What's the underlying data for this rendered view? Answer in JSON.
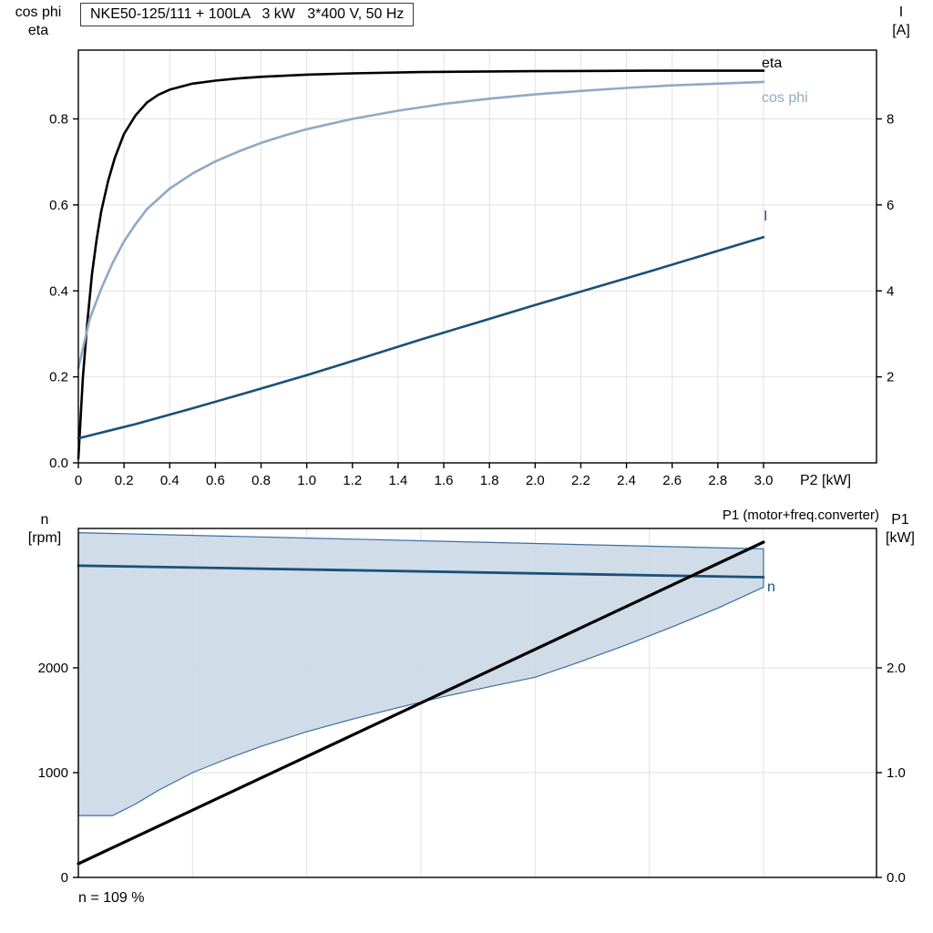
{
  "colors": {
    "eta": "#000000",
    "cos_phi": "#8FA9C7",
    "current": "#1A5078",
    "speed": "#1A5078",
    "p1": "#000000",
    "band_fill": "#CCD9E6",
    "band_stroke": "#3D6E9E",
    "grid": "#E2E2E2",
    "frame": "#000000",
    "text": "#000000"
  },
  "chart_data": [
    {
      "type": "line",
      "title": "NKE50-125/111 + 100LA   3 kW   3*400 V, 50 Hz",
      "x_title": "P2 [kW]",
      "y_left_title": [
        "cos phi",
        "eta"
      ],
      "y_right_title": [
        "I",
        "[A]"
      ],
      "xlim": [
        0,
        3.5
      ],
      "x_ticks": [
        {
          "v": 0,
          "t": "0"
        },
        {
          "v": 0.2,
          "t": "0.2"
        },
        {
          "v": 0.4,
          "t": "0.4"
        },
        {
          "v": 0.6,
          "t": "0.6"
        },
        {
          "v": 0.8,
          "t": "0.8"
        },
        {
          "v": 1.0,
          "t": "1.0"
        },
        {
          "v": 1.2,
          "t": "1.2"
        },
        {
          "v": 1.4,
          "t": "1.4"
        },
        {
          "v": 1.6,
          "t": "1.6"
        },
        {
          "v": 1.8,
          "t": "1.8"
        },
        {
          "v": 2.0,
          "t": "2.0"
        },
        {
          "v": 2.2,
          "t": "2.2"
        },
        {
          "v": 2.4,
          "t": "2.4"
        },
        {
          "v": 2.6,
          "t": "2.6"
        },
        {
          "v": 2.8,
          "t": "2.8"
        },
        {
          "v": 3.0,
          "t": "3.0"
        }
      ],
      "y_left": {
        "label": "cos phi / eta",
        "lim": [
          0,
          0.96
        ],
        "ticks": [
          {
            "v": 0,
            "t": "0.0"
          },
          {
            "v": 0.2,
            "t": "0.2"
          },
          {
            "v": 0.4,
            "t": "0.4"
          },
          {
            "v": 0.6,
            "t": "0.6"
          },
          {
            "v": 0.8,
            "t": "0.8"
          }
        ]
      },
      "y_right": {
        "label": "I [A]",
        "lim": [
          0,
          9.6
        ],
        "ticks": [
          {
            "v": 2,
            "t": "2"
          },
          {
            "v": 4,
            "t": "4"
          },
          {
            "v": 6,
            "t": "6"
          },
          {
            "v": 8,
            "t": "8"
          }
        ]
      },
      "series": [
        {
          "name": "eta",
          "axis": "left",
          "color_key": "eta",
          "width": 2.6,
          "points": [
            [
              0,
              0.01
            ],
            [
              0.02,
              0.2
            ],
            [
              0.04,
              0.33
            ],
            [
              0.06,
              0.44
            ],
            [
              0.08,
              0.52
            ],
            [
              0.1,
              0.585
            ],
            [
              0.13,
              0.655
            ],
            [
              0.16,
              0.71
            ],
            [
              0.2,
              0.765
            ],
            [
              0.25,
              0.808
            ],
            [
              0.3,
              0.838
            ],
            [
              0.35,
              0.856
            ],
            [
              0.4,
              0.868
            ],
            [
              0.5,
              0.882
            ],
            [
              0.6,
              0.889
            ],
            [
              0.7,
              0.894
            ],
            [
              0.8,
              0.898
            ],
            [
              1.0,
              0.903
            ],
            [
              1.2,
              0.906
            ],
            [
              1.5,
              0.909
            ],
            [
              2.0,
              0.911
            ],
            [
              2.5,
              0.912
            ],
            [
              3.0,
              0.912
            ]
          ]
        },
        {
          "name": "cos phi",
          "axis": "left",
          "color_key": "cos_phi",
          "width": 2.6,
          "points": [
            [
              0,
              0.22
            ],
            [
              0.05,
              0.335
            ],
            [
              0.1,
              0.405
            ],
            [
              0.15,
              0.465
            ],
            [
              0.2,
              0.515
            ],
            [
              0.25,
              0.555
            ],
            [
              0.3,
              0.59
            ],
            [
              0.4,
              0.638
            ],
            [
              0.5,
              0.673
            ],
            [
              0.6,
              0.701
            ],
            [
              0.7,
              0.724
            ],
            [
              0.8,
              0.744
            ],
            [
              0.9,
              0.761
            ],
            [
              1.0,
              0.776
            ],
            [
              1.2,
              0.8
            ],
            [
              1.4,
              0.819
            ],
            [
              1.6,
              0.835
            ],
            [
              1.8,
              0.847
            ],
            [
              2.0,
              0.857
            ],
            [
              2.2,
              0.865
            ],
            [
              2.4,
              0.872
            ],
            [
              2.6,
              0.878
            ],
            [
              2.8,
              0.882
            ],
            [
              3.0,
              0.886
            ]
          ]
        },
        {
          "name": "I",
          "axis": "right",
          "color_key": "current",
          "width": 2.6,
          "points": [
            [
              0,
              0.57
            ],
            [
              0.25,
              0.9
            ],
            [
              0.5,
              1.27
            ],
            [
              0.75,
              1.65
            ],
            [
              1.0,
              2.04
            ],
            [
              1.25,
              2.45
            ],
            [
              1.5,
              2.87
            ],
            [
              1.75,
              3.27
            ],
            [
              2.0,
              3.67
            ],
            [
              2.25,
              4.06
            ],
            [
              2.5,
              4.45
            ],
            [
              2.75,
              4.85
            ],
            [
              3.0,
              5.25
            ]
          ]
        }
      ]
    },
    {
      "type": "line-area",
      "y_left_title": [
        "n",
        "[rpm]"
      ],
      "y_right_title": [
        "P1",
        "[kW]"
      ],
      "xlim": [
        0,
        3.5
      ],
      "grid_x_step": 0.5,
      "y_left": {
        "label": "n [rpm]",
        "lim": [
          0,
          3330
        ],
        "ticks": [
          {
            "v": 0,
            "t": "0"
          },
          {
            "v": 1000,
            "t": "1000"
          },
          {
            "v": 2000,
            "t": "2000"
          }
        ]
      },
      "y_right": {
        "label": "P1 [kW]",
        "lim": [
          0,
          3.33
        ],
        "ticks": [
          {
            "v": 0,
            "t": "0.0"
          },
          {
            "v": 1,
            "t": "1.0"
          },
          {
            "v": 2,
            "t": "2.0"
          }
        ]
      },
      "band": {
        "upper": [
          [
            0,
            3290
          ],
          [
            3.0,
            3135
          ]
        ],
        "lower": [
          [
            0,
            590
          ],
          [
            0.15,
            590
          ],
          [
            0.25,
            700
          ],
          [
            0.35,
            830
          ],
          [
            0.5,
            1000
          ],
          [
            0.65,
            1130
          ],
          [
            0.8,
            1250
          ],
          [
            1.0,
            1390
          ],
          [
            1.2,
            1510
          ],
          [
            1.4,
            1620
          ],
          [
            1.6,
            1725
          ],
          [
            1.8,
            1820
          ],
          [
            2.0,
            1910
          ],
          [
            2.2,
            2060
          ],
          [
            2.4,
            2220
          ],
          [
            2.6,
            2390
          ],
          [
            2.8,
            2570
          ],
          [
            3.0,
            2770
          ]
        ]
      },
      "series": [
        {
          "name": "n",
          "axis": "left",
          "color_key": "speed",
          "width": 2.8,
          "points": [
            [
              0,
              2975
            ],
            [
              3.0,
              2865
            ]
          ]
        },
        {
          "name": "P1 (motor+freq.converter)",
          "axis": "right",
          "color_key": "p1",
          "width": 3.2,
          "points": [
            [
              0,
              0.13
            ],
            [
              3.0,
              3.2
            ]
          ]
        }
      ],
      "annotation": "n = 109 %"
    }
  ]
}
